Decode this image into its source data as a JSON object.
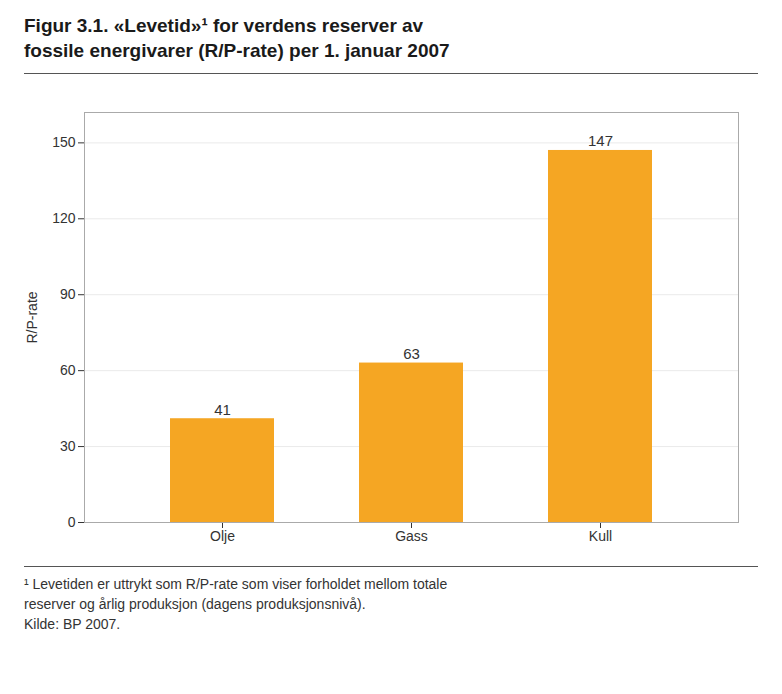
{
  "chart_data": {
    "type": "bar",
    "title": "Figur 3.1. «Levetid»¹ for verdens reserver av\nfossile energivarer (R/P-rate) per 1. januar 2007",
    "caption": "¹ Levetiden er uttrykt som R/P-rate som viser forholdet mellom totale\nreserver og årlig produksjon (dagens produksjonsnivå).\nKilde: BP 2007.",
    "categories": [
      "Olje",
      "Gass",
      "Kull"
    ],
    "values": [
      41,
      63,
      147
    ],
    "color": "#F5A623",
    "ylabel": "R/P-rate",
    "ylim": [
      0,
      162
    ],
    "yticks": [
      0,
      30,
      60,
      90,
      120,
      150
    ],
    "grid": true,
    "data_labels": true
  }
}
